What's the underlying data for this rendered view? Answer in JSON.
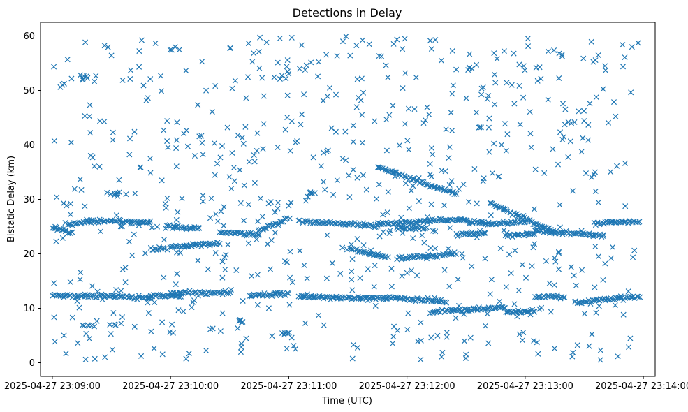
{
  "chart_data": {
    "type": "scatter",
    "title": "Detections in Delay",
    "xlabel": "Time (UTC)",
    "ylabel": "Bistatic Delay (km)",
    "xlim": [
      "2025-04-27 23:08:54",
      "2025-04-27 23:14:06"
    ],
    "ylim": [
      -2.5,
      62.5
    ],
    "grid": false,
    "marker": "x",
    "color": "#1f77b4",
    "x_ticks": [
      "2025-04-27 23:09:00",
      "2025-04-27 23:10:00",
      "2025-04-27 23:11:00",
      "2025-04-27 23:12:00",
      "2025-04-27 23:13:00",
      "2025-04-27 23:14:00"
    ],
    "y_ticks": [
      "0",
      "10",
      "20",
      "30",
      "40",
      "50",
      "60"
    ],
    "tracks": [
      {
        "start": "2025-04-27 23:09:00",
        "end": "2025-04-27 23:09:30",
        "y_start": 12.3,
        "y_end": 12.3
      },
      {
        "start": "2025-04-27 23:09:30",
        "end": "2025-04-27 23:09:50",
        "y_start": 12.2,
        "y_end": 11.9
      },
      {
        "start": "2025-04-27 23:09:50",
        "end": "2025-04-27 23:10:05",
        "y_start": 12.3,
        "y_end": 12.3
      },
      {
        "start": "2025-04-27 23:10:00",
        "end": "2025-04-27 23:10:30",
        "y_start": 12.8,
        "y_end": 12.8
      },
      {
        "start": "2025-04-27 23:10:40",
        "end": "2025-04-27 23:11:00",
        "y_start": 12.4,
        "y_end": 12.6
      },
      {
        "start": "2025-04-27 23:11:05",
        "end": "2025-04-27 23:11:50",
        "y_start": 12.2,
        "y_end": 11.8
      },
      {
        "start": "2025-04-27 23:11:50",
        "end": "2025-04-27 23:12:20",
        "y_start": 12.0,
        "y_end": 11.2
      },
      {
        "start": "2025-04-27 23:12:12",
        "end": "2025-04-27 23:12:50",
        "y_start": 9.3,
        "y_end": 10.2
      },
      {
        "start": "2025-04-27 23:12:50",
        "end": "2025-04-27 23:13:05",
        "y_start": 9.4,
        "y_end": 9.4
      },
      {
        "start": "2025-04-27 23:13:05",
        "end": "2025-04-27 23:13:20",
        "y_start": 12.1,
        "y_end": 12.1
      },
      {
        "start": "2025-04-27 23:13:25",
        "end": "2025-04-27 23:13:58",
        "y_start": 11.0,
        "y_end": 12.2
      },
      {
        "start": "2025-04-27 23:09:00",
        "end": "2025-04-27 23:09:10",
        "y_start": 24.8,
        "y_end": 23.8
      },
      {
        "start": "2025-04-27 23:09:08",
        "end": "2025-04-27 23:09:20",
        "y_start": 25.4,
        "y_end": 25.9
      },
      {
        "start": "2025-04-27 23:09:20",
        "end": "2025-04-27 23:09:40",
        "y_start": 26.0,
        "y_end": 25.8
      },
      {
        "start": "2025-04-27 23:09:40",
        "end": "2025-04-27 23:09:50",
        "y_start": 25.8,
        "y_end": 25.8
      },
      {
        "start": "2025-04-27 23:09:50",
        "end": "2025-04-27 23:09:58",
        "y_start": 21.1,
        "y_end": 21.0
      },
      {
        "start": "2025-04-27 23:09:58",
        "end": "2025-04-27 23:10:05",
        "y_start": 25.0,
        "y_end": 25.0
      },
      {
        "start": "2025-04-27 23:10:00",
        "end": "2025-04-27 23:10:25",
        "y_start": 21.2,
        "y_end": 22.0
      },
      {
        "start": "2025-04-27 23:10:05",
        "end": "2025-04-27 23:10:15",
        "y_start": 24.7,
        "y_end": 24.7
      },
      {
        "start": "2025-04-27 23:10:25",
        "end": "2025-04-27 23:10:45",
        "y_start": 24.0,
        "y_end": 23.5
      },
      {
        "start": "2025-04-27 23:10:45",
        "end": "2025-04-27 23:11:00",
        "y_start": 24.3,
        "y_end": 26.5
      },
      {
        "start": "2025-04-27 23:11:05",
        "end": "2025-04-27 23:11:45",
        "y_start": 26.0,
        "y_end": 25.2
      },
      {
        "start": "2025-04-27 23:11:45",
        "end": "2025-04-27 23:12:05",
        "y_start": 25.5,
        "y_end": 25.8
      },
      {
        "start": "2025-04-27 23:11:55",
        "end": "2025-04-27 23:12:10",
        "y_start": 24.8,
        "y_end": 24.6
      },
      {
        "start": "2025-04-27 23:12:05",
        "end": "2025-04-27 23:12:30",
        "y_start": 26.0,
        "y_end": 26.3
      },
      {
        "start": "2025-04-27 23:12:30",
        "end": "2025-04-27 23:12:40",
        "y_start": 25.9,
        "y_end": 25.7
      },
      {
        "start": "2025-04-27 23:12:40",
        "end": "2025-04-27 23:13:00",
        "y_start": 25.5,
        "y_end": 25.8
      },
      {
        "start": "2025-04-27 23:12:50",
        "end": "2025-04-27 23:13:05",
        "y_start": 23.3,
        "y_end": 23.8
      },
      {
        "start": "2025-04-27 23:13:05",
        "end": "2025-04-27 23:13:40",
        "y_start": 24.2,
        "y_end": 23.4
      },
      {
        "start": "2025-04-27 23:13:35",
        "end": "2025-04-27 23:13:58",
        "y_start": 25.6,
        "y_end": 25.9
      },
      {
        "start": "2025-04-27 23:11:30",
        "end": "2025-04-27 23:11:50",
        "y_start": 21.0,
        "y_end": 19.2
      },
      {
        "start": "2025-04-27 23:11:55",
        "end": "2025-04-27 23:12:25",
        "y_start": 19.1,
        "y_end": 20.0
      },
      {
        "start": "2025-04-27 23:12:25",
        "end": "2025-04-27 23:12:40",
        "y_start": 23.6,
        "y_end": 23.8
      },
      {
        "start": "2025-04-27 23:11:45",
        "end": "2025-04-27 23:12:25",
        "y_start": 35.9,
        "y_end": 31.0
      },
      {
        "start": "2025-04-27 23:12:42",
        "end": "2025-04-27 23:13:15",
        "y_start": 29.3,
        "y_end": 24.0
      }
    ],
    "clusters": [
      {
        "x": "2025-04-27 23:09:15",
        "y": 52.7
      },
      {
        "x": "2025-04-27 23:09:18",
        "y": 6.8
      },
      {
        "x": "2025-04-27 23:09:32",
        "y": 31.0
      },
      {
        "x": "2025-04-27 23:09:32",
        "y": 6.8
      },
      {
        "x": "2025-04-27 23:10:35",
        "y": 7.7
      },
      {
        "x": "2025-04-27 23:10:58",
        "y": 5.5
      },
      {
        "x": "2025-04-27 23:11:12",
        "y": 31.2
      },
      {
        "x": "2025-04-27 23:12:32",
        "y": 53.8
      },
      {
        "x": "2025-04-27 23:12:37",
        "y": 43.3
      },
      {
        "x": "2025-04-27 23:13:22",
        "y": 44.0
      }
    ],
    "noise": {
      "count": 700,
      "x_range": [
        "2025-04-27 23:09:00",
        "2025-04-27 23:13:58"
      ],
      "y_range": [
        0.5,
        60
      ]
    }
  }
}
